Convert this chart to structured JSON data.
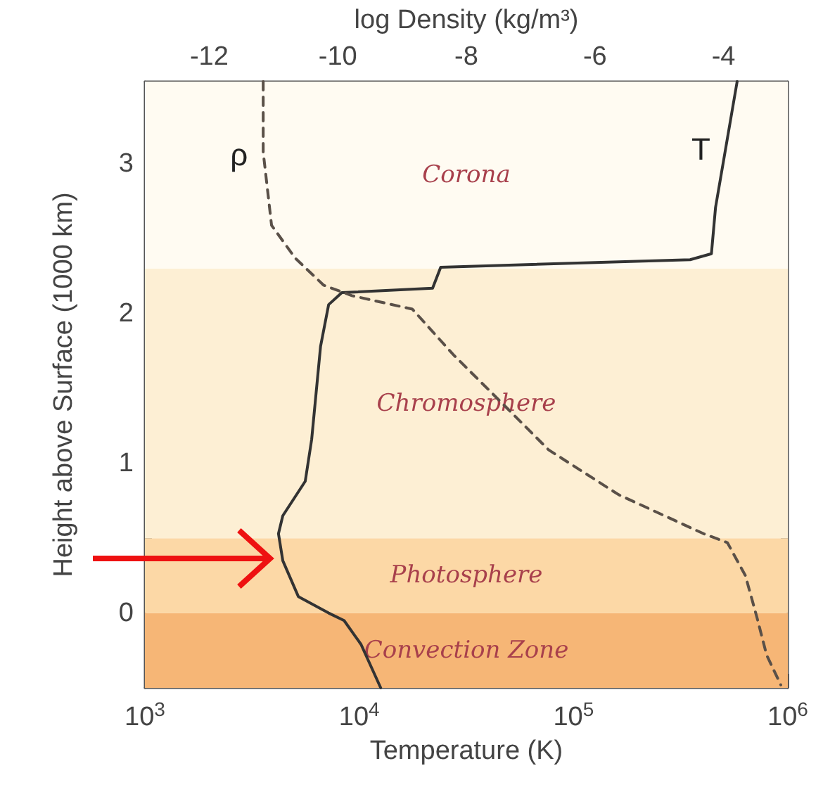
{
  "chart_data": {
    "type": "line",
    "xlabel": "Temperature (K)",
    "ylabel": "Height above Surface (1000 km)",
    "x2label": "log Density (kg/m³)",
    "log": "x",
    "grid": false,
    "legend": false,
    "xlim": [
      1000,
      1000000
    ],
    "xticks": [
      {
        "value": 1000,
        "label": "10$^{3}$"
      },
      {
        "value": 10000,
        "label": "10$^{4}$"
      },
      {
        "value": 100000,
        "label": "10$^{5}$"
      },
      {
        "value": 1000000,
        "label": "10$^{6}$"
      }
    ],
    "x2lim": [
      -13,
      -3
    ],
    "x2ticks": [
      -12,
      -10,
      -8,
      -6,
      -4
    ],
    "ylim": [
      -0.5,
      3.55
    ],
    "yticks": [
      0,
      1,
      2,
      3
    ],
    "bands": [
      {
        "axis": "y",
        "from": -0.5,
        "to": 0,
        "label": "Convection Zone",
        "color": "#f6b676"
      },
      {
        "axis": "y",
        "from": 0,
        "to": 0.5,
        "label": "Photosphere",
        "color": "#fcd8a6"
      },
      {
        "axis": "y",
        "from": 0.5,
        "to": 2.3,
        "label": "Chromosphere",
        "color": "#fdefd4"
      },
      {
        "axis": "y",
        "from": 2.3,
        "to": 3.55,
        "label": "Corona",
        "color": "#fffbf2"
      }
    ],
    "series": [
      {
        "name": "T",
        "color": "#333333",
        "line_style": "solid",
        "x": [
          12600,
          10200,
          8500,
          7200,
          5200,
          4400,
          4200,
          4400,
          5600,
          6000,
          6600,
          7200,
          8300,
          22000,
          24000,
          350000,
          440000,
          460000,
          580000
        ],
        "values": [
          -0.5,
          -0.21,
          -0.05,
          0,
          0.11,
          0.35,
          0.53,
          0.65,
          0.88,
          1.16,
          1.78,
          2.06,
          2.14,
          2.17,
          2.31,
          2.36,
          2.4,
          2.71,
          3.55
        ]
      },
      {
        "name": "ρ",
        "color": "#5a5048",
        "line_style": "dashed",
        "axis": "x2",
        "x": [
          -11.16,
          -11.16,
          -11.03,
          -10.66,
          -10.22,
          -9.78,
          -8.84,
          -8.19,
          -7.44,
          -6.72,
          -5.63,
          -4.31,
          -3.94,
          -3.66,
          -3.48,
          -3.33,
          -3.11
        ],
        "values": [
          3.55,
          3.08,
          2.59,
          2.37,
          2.19,
          2.12,
          2.03,
          1.72,
          1.4,
          1.09,
          0.79,
          0.53,
          0.47,
          0.25,
          -0.03,
          -0.28,
          -0.48
        ]
      }
    ]
  }
}
